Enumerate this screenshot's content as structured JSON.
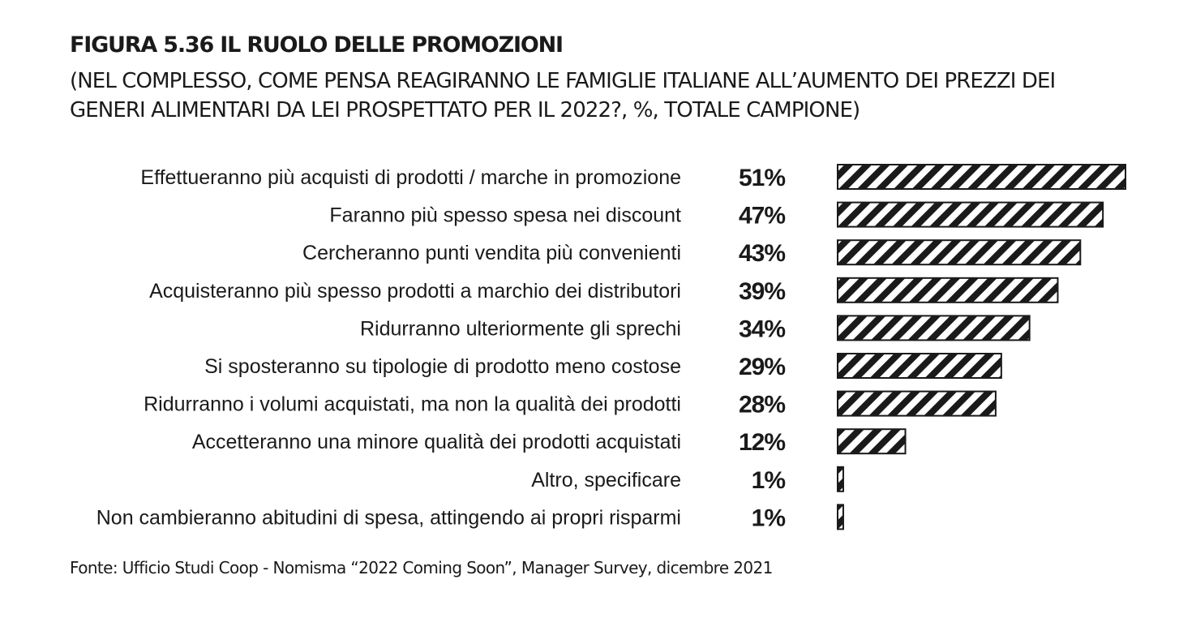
{
  "header": {
    "title": "FIGURA 5.36 IL RUOLO DELLE PROMOZIONI",
    "subtitle": "(NEL COMPLESSO, COME PENSA REAGIRANNO LE FAMIGLIE ITALIANE ALL’AUMENTO DEI PREZZI DEI GENERI ALIMENTARI DA LEI PROSPETTATO PER IL 2022?, %, TOTALE CAMPIONE)"
  },
  "source": "Fonte: Ufficio Studi Coop - Nomisma “2022 Coming Soon”, Manager Survey, dicembre 2021",
  "chart_data": {
    "type": "bar",
    "orientation": "horizontal",
    "bar_fill": "diagonal-hatch",
    "bar_color": "#1a1a1a",
    "unit": "%",
    "categories": [
      "Effettueranno più acquisti di prodotti / marche in promozione",
      "Faranno più spesso spesa nei discount",
      "Cercheranno punti vendita più convenienti",
      "Acquisteranno più spesso prodotti a marchio dei distributori",
      "Ridurranno ulteriormente gli sprechi",
      "Si sposteranno su tipologie di prodotto meno costose",
      "Ridurranno i volumi acquistati, ma non la qualità dei prodotti",
      "Accetteranno una minore qualità dei prodotti acquistati",
      "Altro, specificare",
      "Non cambieranno abitudini di spesa, attingendo ai propri risparmi"
    ],
    "values": [
      51,
      47,
      43,
      39,
      34,
      29,
      28,
      12,
      1,
      1
    ],
    "value_labels": [
      "51%",
      "47%",
      "43%",
      "39%",
      "34%",
      "29%",
      "28%",
      "12%",
      "1%",
      "1%"
    ],
    "xlim": [
      0,
      51
    ],
    "grid": false,
    "legend": "none"
  }
}
